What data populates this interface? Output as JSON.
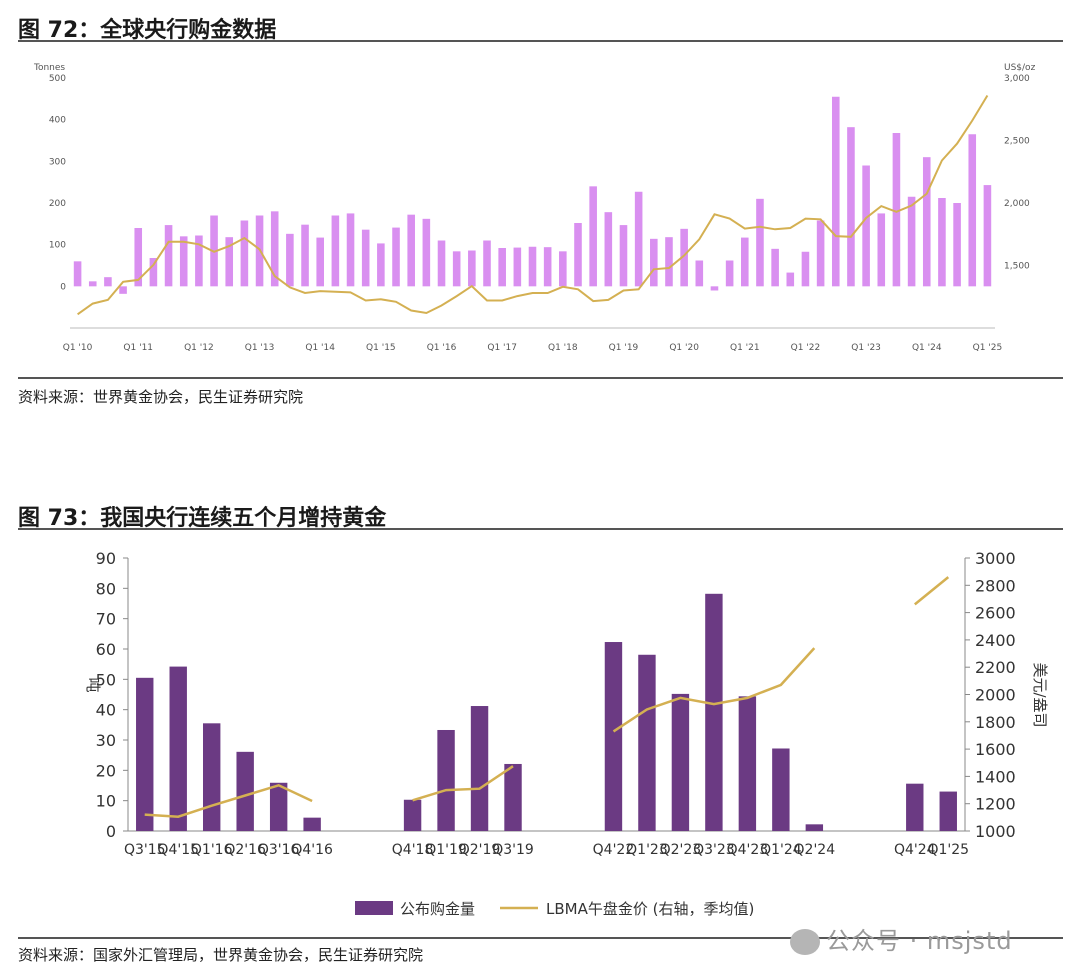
{
  "fig72": {
    "title": "图 72：全球央行购金数据",
    "source": "资料来源：世界黄金协会，民生证券研究院"
  },
  "fig73": {
    "title": "图 73：我国央行连续五个月增持黄金",
    "source": "资料来源：国家外汇管理局，世界黄金协会，民生证券研究院"
  },
  "watermark": {
    "text": "公众号 · msjstd"
  },
  "chart_data": [
    {
      "type": "bar",
      "ylabel": "Tonnes",
      "y2label": "US$/oz",
      "ylim": [
        -100,
        500
      ],
      "y2lim": [
        1000,
        3000
      ],
      "yticks": [
        500,
        400,
        300,
        200,
        100,
        0
      ],
      "y2ticks": [
        3000,
        2500,
        2000,
        1500
      ],
      "grid": false,
      "colors": {
        "bar": "#d98ff0",
        "line": "#d4b052"
      },
      "xticklabels": [
        "Q1 '10",
        "Q1 '11",
        "Q1 '12",
        "Q1 '13",
        "Q1 '14",
        "Q1 '15",
        "Q1 '16",
        "Q1 '17",
        "Q1 '18",
        "Q1 '19",
        "Q1 '20",
        "Q1 '21",
        "Q1 '22",
        "Q1 '23",
        "Q1 '24",
        "Q1 '25"
      ],
      "series": [
        {
          "type": "bar",
          "values": [
            60,
            12,
            22,
            -18,
            140,
            68,
            147,
            120,
            122,
            170,
            118,
            158,
            170,
            180,
            126,
            148,
            117,
            170,
            175,
            136,
            103,
            141,
            172,
            162,
            110,
            84,
            86,
            110,
            92,
            93,
            95,
            94,
            84,
            152,
            240,
            178,
            147,
            227,
            114,
            118,
            138,
            62,
            -10,
            62,
            117,
            210,
            90,
            33,
            83,
            158,
            455,
            382,
            290,
            175,
            368,
            215,
            310,
            212,
            200,
            365,
            243
          ]
        },
        {
          "type": "line",
          "axis": "right",
          "values": [
            1110,
            1195,
            1225,
            1370,
            1385,
            1505,
            1690,
            1690,
            1670,
            1610,
            1655,
            1720,
            1630,
            1415,
            1325,
            1280,
            1295,
            1290,
            1285,
            1220,
            1230,
            1210,
            1140,
            1120,
            1180,
            1255,
            1335,
            1220,
            1220,
            1255,
            1280,
            1280,
            1330,
            1310,
            1215,
            1225,
            1300,
            1310,
            1470,
            1480,
            1580,
            1710,
            1910,
            1875,
            1795,
            1810,
            1790,
            1800,
            1875,
            1870,
            1735,
            1730,
            1880,
            1975,
            1930,
            1980,
            2075,
            2340,
            2475,
            2660,
            2860
          ]
        }
      ]
    },
    {
      "type": "bar",
      "ylabel": "吨",
      "y2label": "美元/盎司",
      "ylim": [
        0,
        90
      ],
      "y2lim": [
        1000,
        3000
      ],
      "yticks": [
        90,
        80,
        70,
        60,
        50,
        40,
        30,
        20,
        10,
        0
      ],
      "y2ticks": [
        3000,
        2800,
        2600,
        2400,
        2200,
        2000,
        1800,
        1600,
        1400,
        1200,
        1000
      ],
      "grid": false,
      "legend_position": "bottom",
      "colors": {
        "bar": "#6b3a83",
        "line": "#d4b052"
      },
      "categories": [
        "Q3'15",
        "Q4'15",
        "Q1'16",
        "Q2'16",
        "Q3'16",
        "Q4'16",
        "",
        "",
        "Q4'18",
        "Q1'19",
        "Q2'19",
        "Q3'19",
        "",
        "",
        "Q4'22",
        "Q1'23",
        "Q2'23",
        "Q3'23",
        "Q4'23",
        "Q1'24",
        "Q2'24",
        "",
        "",
        "Q4'24",
        "Q1'25"
      ],
      "series": [
        {
          "name": "公布购金量",
          "type": "bar",
          "values": [
            50.5,
            54.2,
            35.5,
            26.1,
            15.9,
            4.4,
            null,
            null,
            10.3,
            33.3,
            41.2,
            22.1,
            null,
            null,
            62.3,
            58.1,
            45.2,
            78.2,
            44.4,
            27.2,
            2.2,
            null,
            null,
            15.6,
            13.0
          ]
        },
        {
          "name": "LBMA午盘金价 (右轴，季均值)",
          "type": "line",
          "axis": "right",
          "values": [
            1120,
            1105,
            1185,
            1260,
            1335,
            1220,
            null,
            null,
            1225,
            1300,
            1310,
            1475,
            null,
            null,
            1730,
            1890,
            1975,
            1930,
            1975,
            2070,
            2340,
            null,
            null,
            2660,
            2860
          ]
        }
      ]
    }
  ]
}
